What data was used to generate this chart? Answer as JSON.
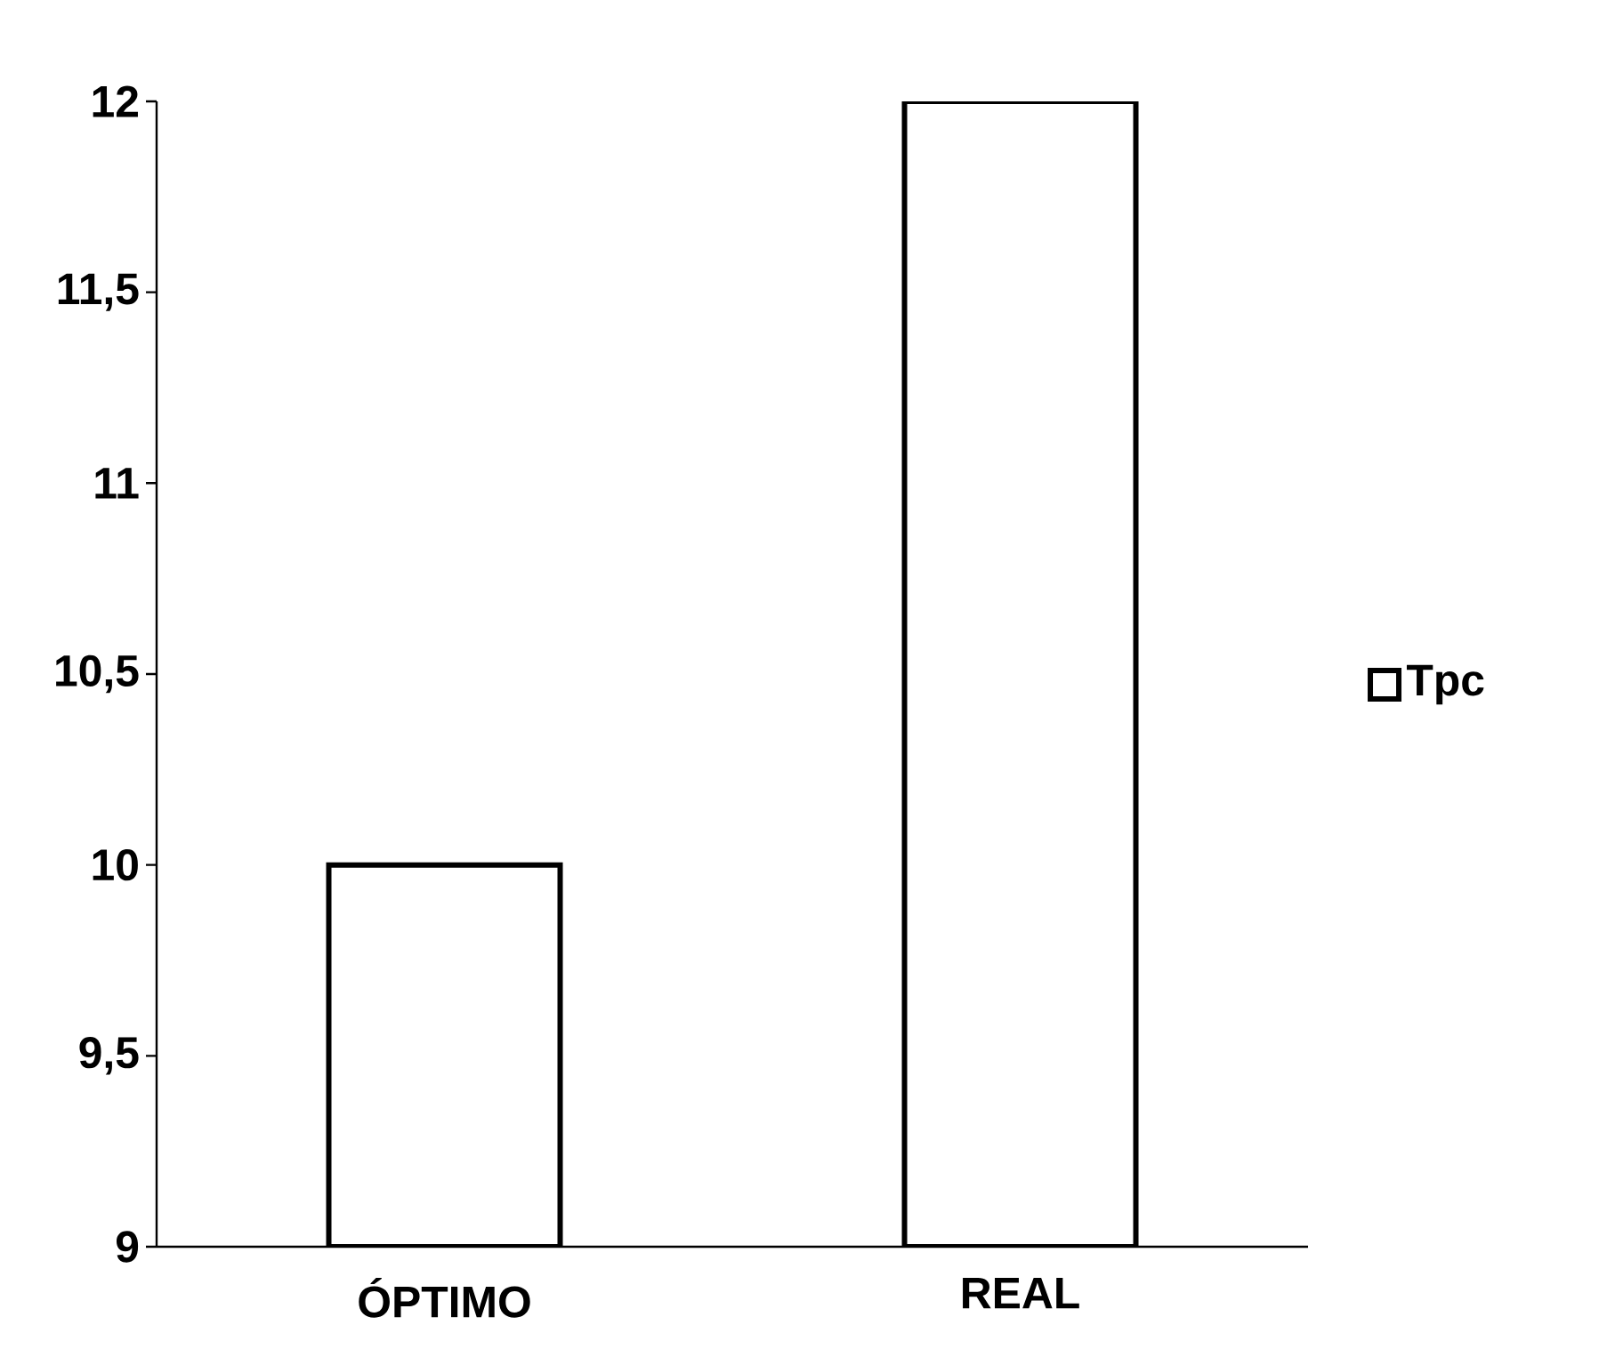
{
  "chart_data": {
    "type": "bar",
    "categories": [
      "ÓPTIMO",
      "REAL"
    ],
    "series": [
      {
        "name": "Tpc",
        "color": "#ffffff",
        "values": [
          10,
          12
        ]
      }
    ],
    "ylim": [
      9,
      12
    ],
    "yticks": [
      9,
      {
        "value": 9.5,
        "label": "9,5"
      },
      10,
      {
        "value": 10.5,
        "label": "10,5"
      },
      11,
      {
        "value": 11.5,
        "label": "11,5"
      },
      12
    ],
    "legend": "right"
  }
}
